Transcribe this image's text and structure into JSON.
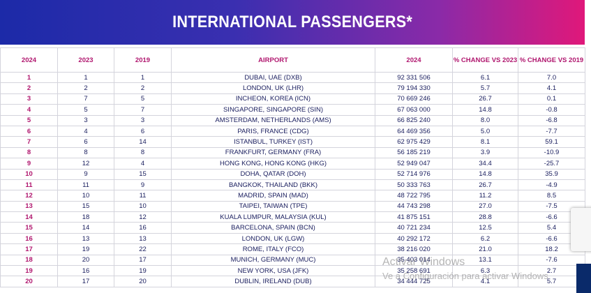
{
  "header": {
    "title": "INTERNATIONAL PASSENGERS*"
  },
  "table": {
    "columns": [
      "2024",
      "2023",
      "2019",
      "AIRPORT",
      "2024",
      "% CHANGE VS 2023",
      "% CHANGE VS 2019"
    ],
    "rows": [
      [
        "1",
        "1",
        "1",
        "DUBAI, UAE (DXB)",
        "92 331 506",
        "6.1",
        "7.0"
      ],
      [
        "2",
        "2",
        "2",
        "LONDON, UK (LHR)",
        "79 194 330",
        "5.7",
        "4.1"
      ],
      [
        "3",
        "7",
        "5",
        "INCHEON, KOREA (ICN)",
        "70 669 246",
        "26.7",
        "0.1"
      ],
      [
        "4",
        "5",
        "7",
        "SINGAPORE, SINGAPORE (SIN)",
        "67 063 000",
        "14.8",
        "-0.8"
      ],
      [
        "5",
        "3",
        "3",
        "AMSTERDAM, NETHERLANDS (AMS)",
        "66 825 240",
        "8.0",
        "-6.8"
      ],
      [
        "6",
        "4",
        "6",
        "PARIS, FRANCE (CDG)",
        "64 469 356",
        "5.0",
        "-7.7"
      ],
      [
        "7",
        "6",
        "14",
        "ISTANBUL, TURKEY (IST)",
        "62 975 429",
        "8.1",
        "59.1"
      ],
      [
        "8",
        "8",
        "8",
        "FRANKFURT, GERMANY (FRA)",
        "56 185 219",
        "3.9",
        "-10.9"
      ],
      [
        "9",
        "12",
        "4",
        "HONG KONG, HONG KONG (HKG)",
        "52 949 047",
        "34.4",
        "-25.7"
      ],
      [
        "10",
        "9",
        "15",
        "DOHA, QATAR (DOH)",
        "52 714 976",
        "14.8",
        "35.9"
      ],
      [
        "11",
        "11",
        "9",
        "BANGKOK, THAILAND (BKK)",
        "50 333 763",
        "26.7",
        "-4.9"
      ],
      [
        "12",
        "10",
        "11",
        "MADRID, SPAIN (MAD)",
        "48 722 795",
        "11.2",
        "8.5"
      ],
      [
        "13",
        "15",
        "10",
        "TAIPEI, TAIWAN (TPE)",
        "44 743 298",
        "27.0",
        "-7.5"
      ],
      [
        "14",
        "18",
        "12",
        "KUALA LUMPUR, MALAYSIA (KUL)",
        "41 875 151",
        "28.8",
        "-6.6"
      ],
      [
        "15",
        "14",
        "16",
        "BARCELONA, SPAIN (BCN)",
        "40 721 234",
        "12.5",
        "5.4"
      ],
      [
        "16",
        "13",
        "13",
        "LONDON, UK (LGW)",
        "40 292 172",
        "6.2",
        "-6.6"
      ],
      [
        "17",
        "19",
        "22",
        "ROME, ITALY (FCO)",
        "38 216 020",
        "21.0",
        "18.2"
      ],
      [
        "18",
        "20",
        "17",
        "MUNICH, GERMANY (MUC)",
        "35 403 014",
        "13.1",
        "-7.6"
      ],
      [
        "19",
        "16",
        "19",
        "NEW YORK, USA (JFK)",
        "35 258 691",
        "6.3",
        "2.7"
      ],
      [
        "20",
        "17",
        "20",
        "DUBLIN, IRELAND (DUB)",
        "34 444 725",
        "4.1",
        "5.7"
      ]
    ]
  },
  "watermark": {
    "line1": "Activar Windows",
    "line2": "Ve a Configuración para activar Windows"
  }
}
